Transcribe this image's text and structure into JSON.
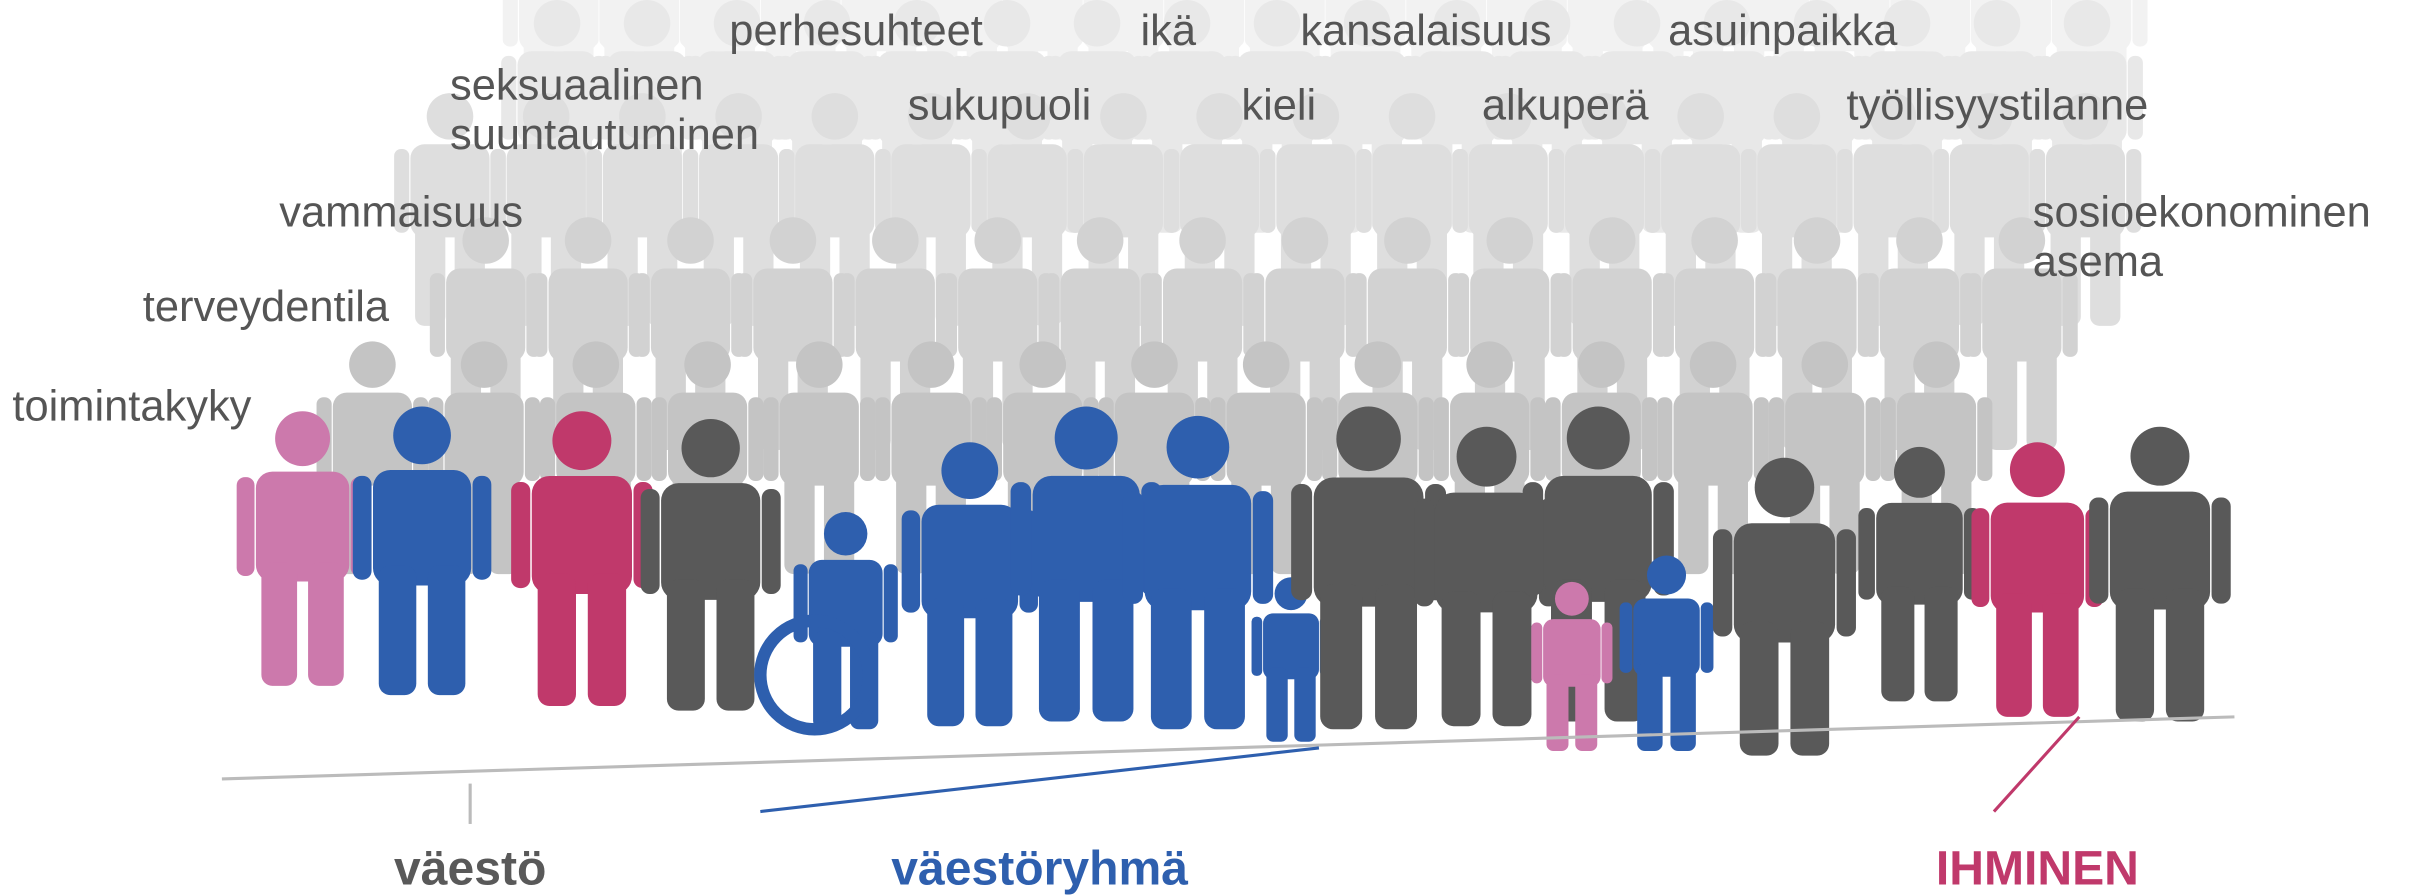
{
  "dimensions": [
    [
      "toimintakyky"
    ],
    [
      "terveydentila"
    ],
    [
      "vammaisuus"
    ],
    [
      "seksuaalinen",
      "suuntautuminen"
    ],
    [
      "perhesuhteet"
    ],
    [
      "sukupuoli"
    ],
    [
      "ikä"
    ],
    [
      "kieli"
    ],
    [
      "kansalaisuus"
    ],
    [
      "alkuperä"
    ],
    [
      "asuinpaikka"
    ],
    [
      "työllisyystilanne"
    ],
    [
      "sosioekonominen",
      "asema"
    ]
  ],
  "levels": [
    "väestö",
    "väestöryhmä",
    "IHMINEN"
  ]
}
